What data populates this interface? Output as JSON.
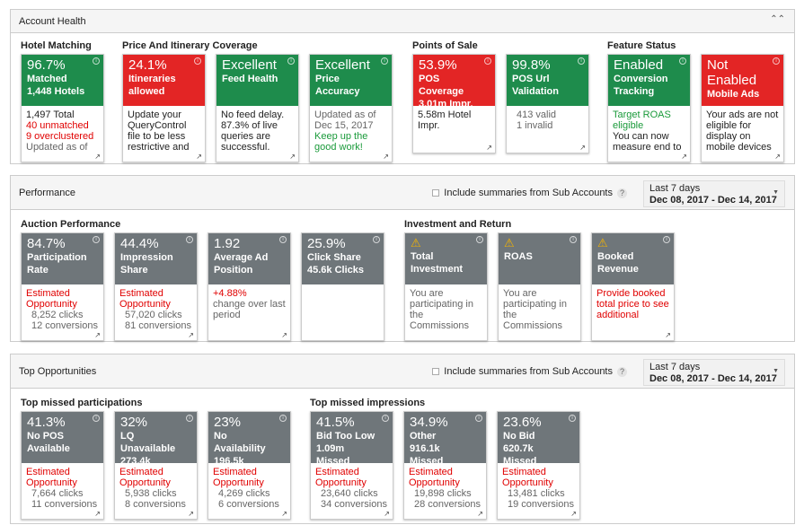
{
  "colors": {
    "green": "#1e8c4c",
    "red": "#e32525",
    "gray": "#6f767a",
    "text_red": "#e00000",
    "text_green": "#1a9a3a",
    "text_gray": "#666666",
    "text_dark": "#222222"
  },
  "account_health": {
    "title": "Account Health",
    "collapse_icon": "double-chevron-up-icon",
    "groups": [
      {
        "title": "Hotel Matching",
        "cards": [
          {
            "color": "green",
            "value": "96.7%",
            "label": "Matched",
            "sub": "1,448 Hotels",
            "body": [
              {
                "t": "1,497 Total",
                "c": "text_dark"
              },
              {
                "t": "40 unmatched",
                "c": "text_red"
              },
              {
                "t": "9 overclustered",
                "c": "text_red"
              },
              {
                "t": "Updated as of",
                "c": "text_gray"
              }
            ]
          }
        ]
      },
      {
        "title": "Price And Itinerary Coverage",
        "cards": [
          {
            "color": "red",
            "value": "24.1%",
            "label": "Itineraries allowed",
            "body": [
              {
                "t": "Update your QueryControl file to be less restrictive and",
                "c": "text_dark"
              }
            ]
          },
          {
            "color": "green",
            "value": "Excellent",
            "label": "Feed Health",
            "body": [
              {
                "t": "No feed delay. 87.3% of live queries are successful.",
                "c": "text_dark"
              }
            ]
          },
          {
            "color": "green",
            "value": "Excellent",
            "label": "Price Accuracy",
            "body": [
              {
                "t": "Updated as of Dec 15, 2017",
                "c": "text_gray"
              },
              {
                "t": "Keep up the good work!",
                "c": "text_green"
              }
            ]
          }
        ]
      },
      {
        "title": "Points of Sale",
        "cards": [
          {
            "color": "red",
            "value": "53.9%",
            "label": "POS Coverage",
            "sub": "3.01m Impr.",
            "body": [
              {
                "t": "5.58m Hotel Impr.",
                "c": "text_dark"
              }
            ]
          },
          {
            "color": "green",
            "value": "99.8%",
            "label": "POS Url Validation",
            "body": [
              {
                "t": "413 valid",
                "c": "text_gray"
              },
              {
                "t": "1 invalid",
                "c": "text_gray"
              }
            ]
          }
        ]
      },
      {
        "title": "Feature Status",
        "cards": [
          {
            "color": "green",
            "value": "Enabled",
            "label": "Conversion Tracking",
            "body": [
              {
                "t": "Target ROAS eligible",
                "c": "text_green"
              },
              {
                "t": "You can now measure end to",
                "c": "text_dark"
              }
            ]
          },
          {
            "color": "red",
            "value": "Not Enabled",
            "label": "Mobile Ads",
            "body": [
              {
                "t": "Your ads are not eligible for display on mobile devices",
                "c": "text_dark"
              }
            ]
          }
        ]
      }
    ]
  },
  "performance": {
    "title": "Performance",
    "sub_accounts_label": "Include summaries from Sub Accounts",
    "date_range_label": "Last 7 days",
    "date_range": "Dec 08, 2017 - Dec 14, 2017",
    "groups": [
      {
        "title": "Auction Performance",
        "cards": [
          {
            "color": "gray",
            "value": "84.7%",
            "label": "Participation Rate",
            "body": [
              {
                "t": "Estimated Opportunity",
                "c": "text_red"
              },
              {
                "t": "8,252 clicks",
                "c": "text_gray"
              },
              {
                "t": "12 conversions",
                "c": "text_gray"
              }
            ]
          },
          {
            "color": "gray",
            "value": "44.4%",
            "label": "Impression Share",
            "body": [
              {
                "t": "Estimated Opportunity",
                "c": "text_red"
              },
              {
                "t": "57,020 clicks",
                "c": "text_gray"
              },
              {
                "t": "81 conversions",
                "c": "text_gray"
              }
            ]
          },
          {
            "color": "gray",
            "value": "1.92",
            "label": "Average Ad Position",
            "body": [
              {
                "t": "+4.88%",
                "c": "text_red"
              },
              {
                "t": "change over last period",
                "c": "text_gray"
              }
            ]
          },
          {
            "color": "gray",
            "value": "25.9%",
            "label": "Click Share",
            "sub": "45.6k Clicks",
            "noext": true,
            "body": []
          }
        ]
      },
      {
        "title": "Investment and Return",
        "cards": [
          {
            "color": "gray",
            "warn": true,
            "label": "Total Investment",
            "noext": true,
            "body": [
              {
                "t": "You are participating in the Commissions",
                "c": "text_gray"
              }
            ]
          },
          {
            "color": "gray",
            "warn": true,
            "label": "ROAS",
            "noext": true,
            "body": [
              {
                "t": "You are participating in the Commissions",
                "c": "text_gray"
              }
            ]
          },
          {
            "color": "gray",
            "warn": true,
            "label": "Booked Revenue",
            "body": [
              {
                "t": "Provide booked total price to see additional",
                "c": "text_red"
              }
            ]
          }
        ]
      }
    ]
  },
  "top_opportunities": {
    "title": "Top Opportunities",
    "sub_accounts_label": "Include summaries from Sub Accounts",
    "date_range_label": "Last 7 days",
    "date_range": "Dec 08, 2017 - Dec 14, 2017",
    "groups": [
      {
        "title": "Top missed participations",
        "cards": [
          {
            "color": "gray",
            "value": "41.3%",
            "label": "No POS Available",
            "body": [
              {
                "t": "Estimated Opportunity",
                "c": "text_red"
              },
              {
                "t": "7,664 clicks",
                "c": "text_gray"
              },
              {
                "t": "11 conversions",
                "c": "text_gray"
              }
            ]
          },
          {
            "color": "gray",
            "value": "32%",
            "label": "LQ Unavailable",
            "sub": "273.4k Missed",
            "body": [
              {
                "t": "Estimated Opportunity",
                "c": "text_red"
              },
              {
                "t": "5,938 clicks",
                "c": "text_gray"
              },
              {
                "t": "8 conversions",
                "c": "text_gray"
              }
            ]
          },
          {
            "color": "gray",
            "value": "23%",
            "label": "No Availability",
            "sub": "196.5k Missed",
            "body": [
              {
                "t": "Estimated Opportunity",
                "c": "text_red"
              },
              {
                "t": "4,269 clicks",
                "c": "text_gray"
              },
              {
                "t": "6 conversions",
                "c": "text_gray"
              }
            ]
          }
        ]
      },
      {
        "title": "Top missed impressions",
        "cards": [
          {
            "color": "gray",
            "value": "41.5%",
            "label": "Bid Too Low",
            "sub": "1.09m Missed",
            "body": [
              {
                "t": "Estimated Opportunity",
                "c": "text_red"
              },
              {
                "t": "23,640 clicks",
                "c": "text_gray"
              },
              {
                "t": "34 conversions",
                "c": "text_gray"
              }
            ]
          },
          {
            "color": "gray",
            "value": "34.9%",
            "label": "Other",
            "sub": "916.1k Missed",
            "body": [
              {
                "t": "Estimated Opportunity",
                "c": "text_red"
              },
              {
                "t": "19,898 clicks",
                "c": "text_gray"
              },
              {
                "t": "28 conversions",
                "c": "text_gray"
              }
            ]
          },
          {
            "color": "gray",
            "value": "23.6%",
            "label": "No Bid",
            "sub": "620.7k Missed",
            "body": [
              {
                "t": "Estimated Opportunity",
                "c": "text_red"
              },
              {
                "t": "13,481 clicks",
                "c": "text_gray"
              },
              {
                "t": "19 conversions",
                "c": "text_gray"
              }
            ]
          }
        ]
      }
    ]
  }
}
